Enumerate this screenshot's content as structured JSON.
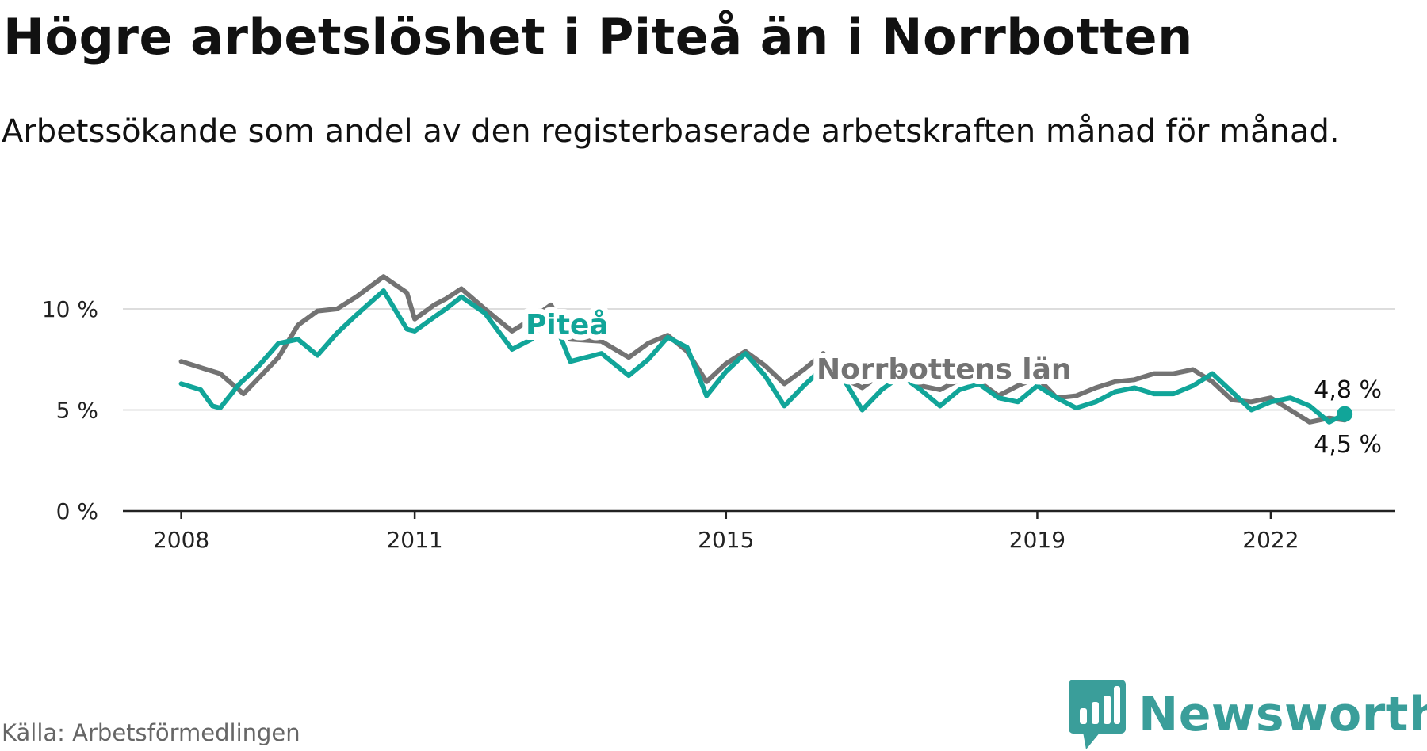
{
  "title": "Högre arbetslöshet i Piteå än i Norrbotten",
  "subtitle": "Arbetssökande som andel av den registerbaserade arbetskraften månad för månad.",
  "source": "Källa: Arbetsförmedlingen",
  "logo": {
    "text": "Newsworthy",
    "icon": "newsworthy-chart-bubble-icon"
  },
  "colors": {
    "pitea": "#11a599",
    "norrbotten": "#737373",
    "grid": "#dddddd",
    "axis": "#222222",
    "logo": "#3a9e9a"
  },
  "chart_data": {
    "type": "line",
    "title": "Högre arbetslöshet i Piteå än i Norrbotten",
    "xlabel": "",
    "ylabel": "",
    "xlim": [
      2007.25,
      2023.6
    ],
    "ylim": [
      0,
      10
    ],
    "yticks": [
      0,
      5,
      10
    ],
    "ytick_labels": [
      "0 %",
      "5 %",
      "10 %"
    ],
    "xticks": [
      2008,
      2011,
      2015,
      2019,
      2022
    ],
    "xtick_labels": [
      "2008",
      "2011",
      "2015",
      "2019",
      "2022"
    ],
    "grid": true,
    "series": [
      {
        "name": "Norrbottens län",
        "key": "norrbotten",
        "label": "Norrbottens län",
        "end_label": "4,5 %",
        "x": [
          2008.0,
          2008.5,
          2008.8,
          2009.0,
          2009.25,
          2009.5,
          2009.75,
          2010.0,
          2010.25,
          2010.6,
          2010.9,
          2011.0,
          2011.25,
          2011.4,
          2011.6,
          2011.9,
          2012.25,
          2012.5,
          2012.75,
          2013.0,
          2013.4,
          2013.75,
          2014.0,
          2014.25,
          2014.5,
          2014.75,
          2015.0,
          2015.25,
          2015.5,
          2015.75,
          2016.0,
          2016.25,
          2016.5,
          2016.75,
          2017.0,
          2017.25,
          2017.5,
          2017.75,
          2018.0,
          2018.25,
          2018.5,
          2018.75,
          2019.0,
          2019.25,
          2019.5,
          2019.75,
          2020.0,
          2020.25,
          2020.5,
          2020.75,
          2021.0,
          2021.25,
          2021.5,
          2021.75,
          2022.0,
          2022.25,
          2022.5,
          2022.75,
          2022.95
        ],
        "values": [
          7.4,
          6.8,
          5.8,
          6.6,
          7.6,
          9.2,
          9.9,
          10.0,
          10.6,
          11.6,
          10.8,
          9.5,
          10.2,
          10.5,
          11.0,
          10.0,
          8.9,
          9.5,
          10.2,
          8.5,
          8.4,
          7.6,
          8.3,
          8.7,
          7.9,
          6.4,
          7.3,
          7.9,
          7.2,
          6.3,
          7.0,
          7.8,
          6.6,
          6.1,
          6.8,
          6.9,
          6.2,
          6.0,
          6.5,
          6.4,
          5.7,
          6.2,
          6.6,
          5.6,
          5.7,
          6.1,
          6.4,
          6.5,
          6.8,
          6.8,
          7.0,
          6.4,
          5.5,
          5.4,
          5.6,
          5.0,
          4.4,
          4.6,
          4.5
        ]
      },
      {
        "name": "Piteå",
        "key": "pitea",
        "label": "Piteå",
        "end_label": "4,8 %",
        "x": [
          2008.0,
          2008.25,
          2008.4,
          2008.5,
          2008.75,
          2009.0,
          2009.25,
          2009.5,
          2009.75,
          2010.0,
          2010.25,
          2010.6,
          2010.9,
          2011.0,
          2011.25,
          2011.4,
          2011.6,
          2011.9,
          2012.25,
          2012.5,
          2012.75,
          2013.0,
          2013.4,
          2013.75,
          2014.0,
          2014.25,
          2014.5,
          2014.75,
          2015.0,
          2015.25,
          2015.5,
          2015.75,
          2016.0,
          2016.25,
          2016.5,
          2016.75,
          2017.0,
          2017.25,
          2017.5,
          2017.75,
          2018.0,
          2018.25,
          2018.5,
          2018.75,
          2019.0,
          2019.25,
          2019.5,
          2019.75,
          2020.0,
          2020.25,
          2020.5,
          2020.75,
          2021.0,
          2021.25,
          2021.5,
          2021.75,
          2022.0,
          2022.25,
          2022.5,
          2022.75,
          2022.95
        ],
        "values": [
          6.3,
          6.0,
          5.2,
          5.1,
          6.3,
          7.2,
          8.3,
          8.5,
          7.7,
          8.8,
          9.7,
          10.9,
          9.0,
          8.9,
          9.6,
          10.0,
          10.6,
          9.8,
          8.0,
          8.5,
          9.8,
          7.4,
          7.8,
          6.7,
          7.5,
          8.6,
          8.1,
          5.7,
          6.9,
          7.8,
          6.7,
          5.2,
          6.2,
          7.1,
          6.6,
          5.0,
          6.0,
          6.7,
          6.0,
          5.2,
          6.0,
          6.3,
          5.6,
          5.4,
          6.2,
          5.6,
          5.1,
          5.4,
          5.9,
          6.1,
          5.8,
          5.8,
          6.2,
          6.8,
          5.9,
          5.0,
          5.4,
          5.6,
          5.2,
          4.4,
          4.8
        ]
      }
    ]
  }
}
